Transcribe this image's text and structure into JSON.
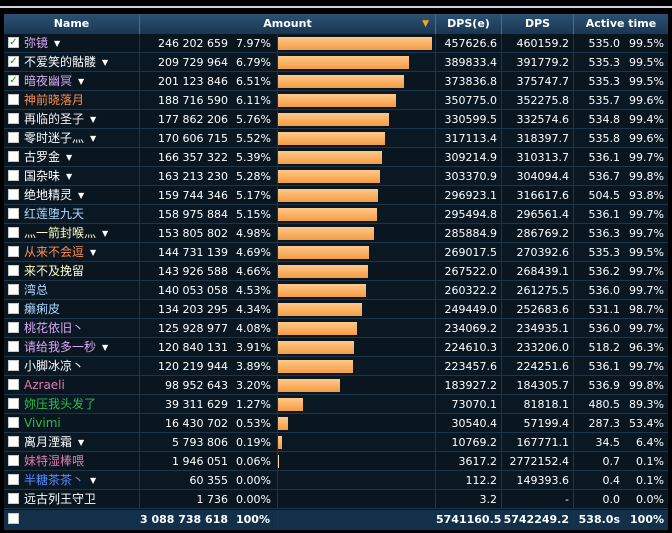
{
  "header": {
    "name": "Name",
    "amount": "Amount",
    "sort_arrow": "▼",
    "dpse": "DPS(e)",
    "dps": "DPS",
    "active_time": "Active time"
  },
  "colors": {
    "accent_bar": "#f49c44",
    "checkmark": "#1b8a2b"
  },
  "rows": [
    {
      "name": "弥镜",
      "color": "#d9a8f2",
      "checked": true,
      "dropdown": true,
      "amount": "246 202 659",
      "pct": "7.97%",
      "bar": 1.0,
      "dpse": "457626.6",
      "dps": "460159.2",
      "time": "535.0",
      "tpct": "99.5%"
    },
    {
      "name": "不爱笑的骷髅",
      "color": "#ffffff",
      "checked": true,
      "dropdown": true,
      "amount": "209 729 964",
      "pct": "6.79%",
      "bar": 0.852,
      "dpse": "389833.4",
      "dps": "391779.2",
      "time": "535.3",
      "tpct": "99.5%"
    },
    {
      "name": "暗夜幽冥",
      "color": "#d9a8f2",
      "checked": true,
      "dropdown": true,
      "amount": "201 123 846",
      "pct": "6.51%",
      "bar": 0.817,
      "dpse": "373836.8",
      "dps": "375747.7",
      "time": "535.3",
      "tpct": "99.5%"
    },
    {
      "name": "神前晓落月",
      "color": "#ff8c4a",
      "checked": false,
      "dropdown": false,
      "amount": "188 716 590",
      "pct": "6.11%",
      "bar": 0.767,
      "dpse": "350775.0",
      "dps": "352275.8",
      "time": "535.7",
      "tpct": "99.6%"
    },
    {
      "name": "再临的圣子",
      "color": "#f3f3f3",
      "checked": false,
      "dropdown": true,
      "amount": "177 862 206",
      "pct": "5.76%",
      "bar": 0.722,
      "dpse": "330599.5",
      "dps": "332574.6",
      "time": "534.8",
      "tpct": "99.4%"
    },
    {
      "name": "零时迷子灬",
      "color": "#ffffff",
      "checked": false,
      "dropdown": true,
      "amount": "170 606 715",
      "pct": "5.52%",
      "bar": 0.693,
      "dpse": "317113.4",
      "dps": "318397.7",
      "time": "535.8",
      "tpct": "99.6%"
    },
    {
      "name": "古罗金",
      "color": "#ffffff",
      "checked": false,
      "dropdown": true,
      "amount": "166 357 322",
      "pct": "5.39%",
      "bar": 0.676,
      "dpse": "309214.9",
      "dps": "310313.7",
      "time": "536.1",
      "tpct": "99.7%"
    },
    {
      "name": "国杂味",
      "color": "#ffffff",
      "checked": false,
      "dropdown": true,
      "amount": "163 213 230",
      "pct": "5.28%",
      "bar": 0.663,
      "dpse": "303370.9",
      "dps": "304094.4",
      "time": "536.7",
      "tpct": "99.8%"
    },
    {
      "name": "绝地精灵",
      "color": "#ffffff",
      "checked": false,
      "dropdown": true,
      "amount": "159 744 346",
      "pct": "5.17%",
      "bar": 0.649,
      "dpse": "296923.1",
      "dps": "316617.6",
      "time": "504.5",
      "tpct": "93.8%"
    },
    {
      "name": "红莲堕九天",
      "color": "#aed7ff",
      "checked": false,
      "dropdown": false,
      "amount": "158 975 884",
      "pct": "5.15%",
      "bar": 0.646,
      "dpse": "295494.8",
      "dps": "296561.4",
      "time": "536.1",
      "tpct": "99.7%"
    },
    {
      "name": "灬一箭封喉灬",
      "color": "#fffdc4",
      "checked": false,
      "dropdown": true,
      "amount": "153 805 802",
      "pct": "4.98%",
      "bar": 0.625,
      "dpse": "285884.9",
      "dps": "286769.2",
      "time": "536.3",
      "tpct": "99.7%"
    },
    {
      "name": "从来不会逗",
      "color": "#ff8c4a",
      "checked": false,
      "dropdown": true,
      "amount": "144 731 139",
      "pct": "4.69%",
      "bar": 0.588,
      "dpse": "269017.5",
      "dps": "270392.6",
      "time": "535.3",
      "tpct": "99.5%"
    },
    {
      "name": "来不及挽留",
      "color": "#fffdc4",
      "checked": false,
      "dropdown": false,
      "amount": "143 926 588",
      "pct": "4.66%",
      "bar": 0.585,
      "dpse": "267522.0",
      "dps": "268439.1",
      "time": "536.2",
      "tpct": "99.7%"
    },
    {
      "name": "湾总",
      "color": "#aed7ff",
      "checked": false,
      "dropdown": false,
      "amount": "140 053 058",
      "pct": "4.53%",
      "bar": 0.569,
      "dpse": "260322.2",
      "dps": "261275.5",
      "time": "536.0",
      "tpct": "99.7%"
    },
    {
      "name": "癞痢皮",
      "color": "#aed7ff",
      "checked": false,
      "dropdown": false,
      "amount": "134 203 295",
      "pct": "4.34%",
      "bar": 0.545,
      "dpse": "249449.0",
      "dps": "252683.6",
      "time": "531.1",
      "tpct": "98.7%"
    },
    {
      "name": "桃花依旧丶",
      "color": "#d9a8f2",
      "checked": false,
      "dropdown": false,
      "amount": "125 928 977",
      "pct": "4.08%",
      "bar": 0.511,
      "dpse": "234069.2",
      "dps": "234935.1",
      "time": "536.0",
      "tpct": "99.7%"
    },
    {
      "name": "请给我多一秒",
      "color": "#d9a8f2",
      "checked": false,
      "dropdown": true,
      "amount": "120 840 131",
      "pct": "3.91%",
      "bar": 0.491,
      "dpse": "224610.3",
      "dps": "233206.0",
      "time": "518.2",
      "tpct": "96.3%"
    },
    {
      "name": "小脚冰凉丶",
      "color": "#ffffff",
      "checked": false,
      "dropdown": false,
      "amount": "120 219 944",
      "pct": "3.89%",
      "bar": 0.488,
      "dpse": "223457.6",
      "dps": "224251.6",
      "time": "536.1",
      "tpct": "99.7%"
    },
    {
      "name": "Azraeli",
      "color": "#e37ab0",
      "checked": false,
      "dropdown": false,
      "amount": "98 952 643",
      "pct": "3.20%",
      "bar": 0.402,
      "dpse": "183927.2",
      "dps": "184305.7",
      "time": "536.9",
      "tpct": "99.8%"
    },
    {
      "name": "妳压我头发了",
      "color": "#2bbd4a",
      "checked": false,
      "dropdown": false,
      "amount": "39 311 629",
      "pct": "1.27%",
      "bar": 0.16,
      "dpse": "73070.1",
      "dps": "81818.1",
      "time": "480.5",
      "tpct": "89.3%"
    },
    {
      "name": "Vivimi",
      "color": "#2bbd4a",
      "checked": false,
      "dropdown": false,
      "amount": "16 430 702",
      "pct": "0.53%",
      "bar": 0.067,
      "dpse": "30540.4",
      "dps": "57199.4",
      "time": "287.3",
      "tpct": "53.4%"
    },
    {
      "name": "离月湮霜",
      "color": "#ffffff",
      "checked": false,
      "dropdown": true,
      "amount": "5 793 806",
      "pct": "0.19%",
      "bar": 0.024,
      "dpse": "10769.2",
      "dps": "167771.1",
      "time": "34.5",
      "tpct": "6.4%"
    },
    {
      "name": "妹特湿棒喂",
      "color": "#e37ab0",
      "checked": false,
      "dropdown": false,
      "amount": "1 946 051",
      "pct": "0.06%",
      "bar": 0.008,
      "dpse": "3617.2",
      "dps": "2772152.4",
      "time": "0.7",
      "tpct": "0.1%"
    },
    {
      "name": "半糖茶茶丶",
      "color": "#5b8dff",
      "checked": false,
      "dropdown": true,
      "amount": "60 355",
      "pct": "0.00%",
      "bar": 0.0,
      "dpse": "112.2",
      "dps": "149393.6",
      "time": "0.4",
      "tpct": "0.1%"
    },
    {
      "name": "远古列王守卫",
      "color": "#ffffff",
      "checked": false,
      "dropdown": false,
      "amount": "1 736",
      "pct": "0.00%",
      "bar": 0.0,
      "dpse": "3.2",
      "dps": "-",
      "time": "0.0",
      "tpct": "0.0%"
    }
  ],
  "totals": {
    "amount": "3 088 738 618",
    "pct": "100%",
    "dpse": "5741160.5",
    "dps": "5742249.2",
    "time": "538.0s",
    "tpct": "100%"
  }
}
